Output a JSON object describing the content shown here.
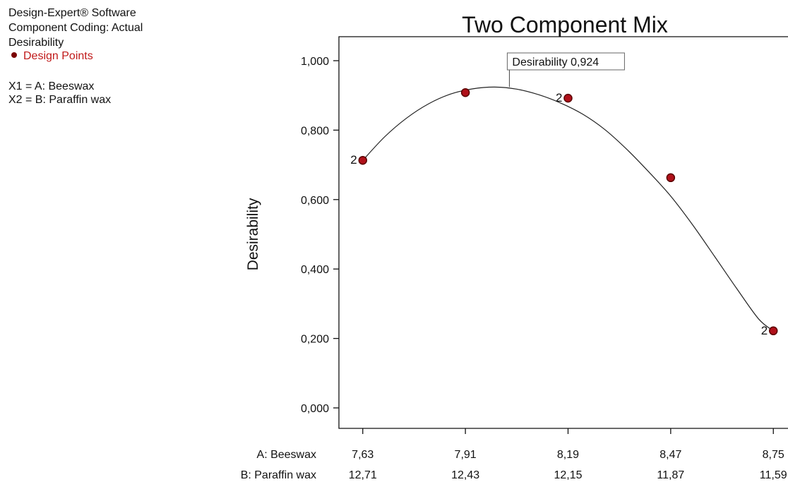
{
  "info": {
    "software": "Design-Expert® Software",
    "coding": "Component Coding: Actual",
    "response": "Desirability",
    "legend_label": "Design Points",
    "x1": "X1 = A: Beeswax",
    "x2": "X2 = B: Paraffin wax"
  },
  "colors": {
    "point_fill": "#b0101a",
    "point_stroke": "#5a0000",
    "legend_text": "#c01a1a",
    "curve": "#222222",
    "axis": "#111111"
  },
  "chart_data": {
    "type": "line",
    "title": "Two Component Mix",
    "ylabel": "Desirability",
    "ylim": [
      0,
      1.0
    ],
    "yticks": [
      0.0,
      0.2,
      0.4,
      0.6,
      0.8,
      1.0
    ],
    "ytick_labels": [
      "0,000",
      "0,200",
      "0,400",
      "0,600",
      "0,800",
      "1,000"
    ],
    "x_axis_rows": [
      {
        "label": "A: Beeswax",
        "ticks": [
          "7,63",
          "7,91",
          "8,19",
          "8,47",
          "8,75"
        ]
      },
      {
        "label": "B: Paraffin wax",
        "ticks": [
          "12,71",
          "12,43",
          "12,15",
          "11,87",
          "11,59"
        ]
      }
    ],
    "xlim": [
      7.565,
      8.79
    ],
    "x_ticks": [
      7.63,
      7.91,
      8.19,
      8.47,
      8.75
    ],
    "curve": {
      "x": [
        7.63,
        7.69,
        7.75,
        7.81,
        7.87,
        7.93,
        7.99,
        8.05,
        8.11,
        8.17,
        8.23,
        8.29,
        8.35,
        8.41,
        8.47,
        8.53,
        8.59,
        8.65,
        8.71,
        8.75
      ],
      "y": [
        0.713,
        0.781,
        0.835,
        0.876,
        0.904,
        0.919,
        0.924,
        0.918,
        0.902,
        0.878,
        0.846,
        0.802,
        0.745,
        0.68,
        0.61,
        0.527,
        0.436,
        0.344,
        0.256,
        0.222
      ]
    },
    "design_points": [
      {
        "x": 7.63,
        "y": 0.713,
        "label": "2"
      },
      {
        "x": 7.91,
        "y": 0.908,
        "label": ""
      },
      {
        "x": 8.19,
        "y": 0.892,
        "label": "2"
      },
      {
        "x": 8.47,
        "y": 0.663,
        "label": ""
      },
      {
        "x": 8.75,
        "y": 0.222,
        "label": "2"
      }
    ],
    "annotation": {
      "text": "Desirability 0,924",
      "x": 8.03,
      "y": 0.924
    }
  }
}
